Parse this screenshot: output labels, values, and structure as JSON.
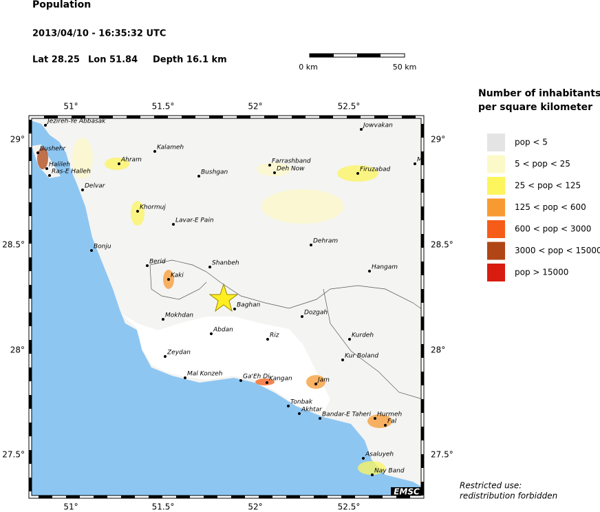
{
  "header": {
    "title": "Population",
    "datetime": "2013/04/10 - 16:35:32 UTC",
    "lat": "Lat 28.25",
    "lon": "Lon  51.84",
    "depth": "Depth  16.1 km"
  },
  "scale": {
    "start": "0 km",
    "end": "50 km"
  },
  "legend": {
    "title_line1": "Number of inhabitants",
    "title_line2": "per square kilometer",
    "items": [
      {
        "label": "pop < 5",
        "color": "#e3e4e3"
      },
      {
        "label": "5 < pop < 25",
        "color": "#fcf9c8"
      },
      {
        "label": "25 < pop < 125",
        "color": "#fcf55e"
      },
      {
        "label": "125 < pop < 600",
        "color": "#f89a32"
      },
      {
        "label": "600 < pop < 3000",
        "color": "#f45c17"
      },
      {
        "label": "3000 < pop < 15000",
        "color": "#b04515"
      },
      {
        "label": "pop > 15000",
        "color": "#d81c10"
      }
    ]
  },
  "map": {
    "lon_labels": [
      "51°",
      "51.5°",
      "52°",
      "52.5°"
    ],
    "lat_labels": [
      "29°",
      "28.5°",
      "28°",
      "27.5°"
    ],
    "places": [
      "Jezireh-Ye Abbasak",
      "Bushehr",
      "Halileh",
      "Ras-E Halleh",
      "Ahram",
      "Kalameh",
      "Bushgan",
      "Farrashband",
      "Deh Now",
      "Firuzabad",
      "Meyma",
      "Jowvakan",
      "Delvar",
      "Khormuj",
      "Lavar-E Pain",
      "Bonju",
      "Dehram",
      "Berid",
      "Shanbeh",
      "Hangam",
      "Kaki",
      "Baghan",
      "Dozgah",
      "Mokhdan",
      "Abdan",
      "Riz",
      "Kurdeh",
      "Zeydan",
      "Kur Boland",
      "Mal Konzeh",
      "Ga'Eh Di",
      "Kangan",
      "Jam",
      "Tonbak",
      "Akhtar",
      "Bandar-E Taheri",
      "Hurmeh",
      "Fal",
      "Asaluyeh",
      "Nay Band"
    ],
    "credit": "EMSC"
  },
  "footer": {
    "line1": "Restricted use:",
    "line2": "redistribution forbidden"
  }
}
